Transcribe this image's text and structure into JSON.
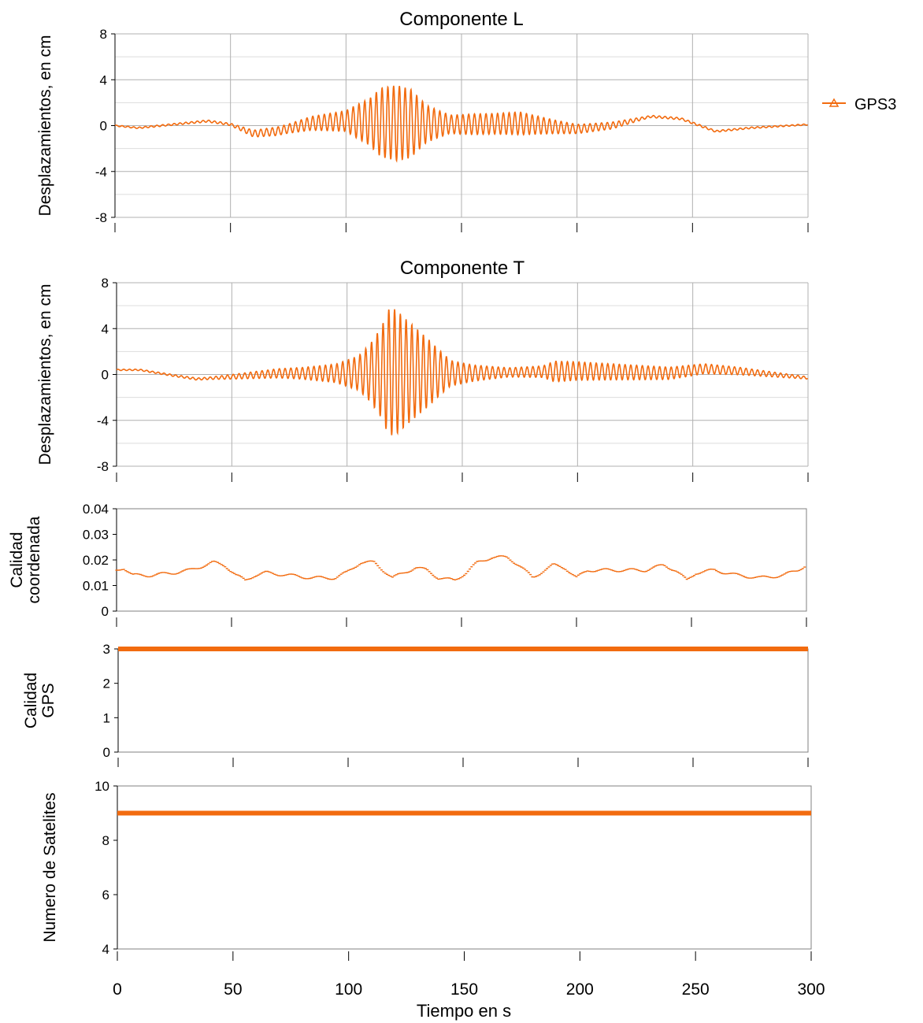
{
  "legend": {
    "label": "GPS3",
    "position": "top-right"
  },
  "colors": {
    "series": "#f26b0f",
    "grid": "#b0b0b0",
    "axis": "#000000",
    "minor_grid": "#dddddd"
  },
  "x_axis": {
    "label": "Tiempo en s",
    "ticks": [
      0,
      50,
      100,
      150,
      200,
      250,
      300
    ],
    "range": [
      0,
      300
    ]
  },
  "chart_data": [
    {
      "type": "line",
      "title": "Componente L",
      "ylabel": "Desplazamientos, en cm",
      "ylim": [
        -8,
        8
      ],
      "yticks": [
        8,
        4,
        0,
        -4,
        -8
      ],
      "grid": true,
      "series": [
        {
          "name": "GPS3",
          "x": [
            0,
            300
          ],
          "baseline": [
            [
              0,
              0
            ],
            [
              10,
              -0.2
            ],
            [
              25,
              0.1
            ],
            [
              40,
              0.4
            ],
            [
              50,
              0.1
            ],
            [
              60,
              -0.7
            ],
            [
              70,
              -0.5
            ],
            [
              85,
              0.2
            ],
            [
              100,
              0.4
            ],
            [
              125,
              0.2
            ],
            [
              150,
              0.1
            ],
            [
              175,
              0.2
            ],
            [
              200,
              -0.3
            ],
            [
              215,
              0.0
            ],
            [
              232,
              0.8
            ],
            [
              245,
              0.6
            ],
            [
              260,
              -0.5
            ],
            [
              275,
              -0.2
            ],
            [
              300,
              0.1
            ]
          ],
          "envelope": [
            [
              0,
              0.05
            ],
            [
              50,
              0.1
            ],
            [
              60,
              0.3
            ],
            [
              75,
              0.4
            ],
            [
              90,
              0.7
            ],
            [
              100,
              0.9
            ],
            [
              105,
              1.5
            ],
            [
              110,
              2.0
            ],
            [
              115,
              3.0
            ],
            [
              122,
              3.3
            ],
            [
              128,
              3.0
            ],
            [
              135,
              1.6
            ],
            [
              145,
              0.8
            ],
            [
              155,
              0.9
            ],
            [
              165,
              0.9
            ],
            [
              175,
              1.0
            ],
            [
              190,
              0.6
            ],
            [
              200,
              0.4
            ],
            [
              215,
              0.3
            ],
            [
              230,
              0.1
            ],
            [
              300,
              0.05
            ]
          ]
        }
      ]
    },
    {
      "type": "line",
      "title": "Componente T",
      "ylabel": "Desplazamientos, en cm",
      "ylim": [
        -8,
        8
      ],
      "yticks": [
        8,
        4,
        0,
        -4,
        -8
      ],
      "grid": true,
      "series": [
        {
          "name": "GPS3",
          "x": [
            0,
            300
          ],
          "baseline": [
            [
              0,
              0.4
            ],
            [
              10,
              0.4
            ],
            [
              25,
              -0.1
            ],
            [
              35,
              -0.4
            ],
            [
              50,
              -0.2
            ],
            [
              70,
              0.1
            ],
            [
              100,
              0.1
            ],
            [
              120,
              0.2
            ],
            [
              150,
              0.1
            ],
            [
              200,
              0.3
            ],
            [
              240,
              0.1
            ],
            [
              255,
              0.5
            ],
            [
              270,
              0.3
            ],
            [
              300,
              -0.3
            ]
          ],
          "envelope": [
            [
              0,
              0.05
            ],
            [
              40,
              0.1
            ],
            [
              60,
              0.3
            ],
            [
              80,
              0.5
            ],
            [
              95,
              0.8
            ],
            [
              105,
              1.5
            ],
            [
              110,
              2.5
            ],
            [
              115,
              4.0
            ],
            [
              118,
              5.5
            ],
            [
              121,
              5.5
            ],
            [
              128,
              4.2
            ],
            [
              135,
              3.0
            ],
            [
              140,
              2.0
            ],
            [
              145,
              1.1
            ],
            [
              155,
              0.7
            ],
            [
              170,
              0.4
            ],
            [
              185,
              0.5
            ],
            [
              190,
              0.9
            ],
            [
              200,
              0.8
            ],
            [
              230,
              0.6
            ],
            [
              260,
              0.4
            ],
            [
              300,
              0.1
            ]
          ]
        }
      ]
    },
    {
      "type": "scatter",
      "ylabel": "Calidad coordenada",
      "ylim": [
        0,
        0.04
      ],
      "yticks": [
        0.04,
        0.03,
        0.02,
        0.01,
        0
      ],
      "grid": false,
      "series": [
        {
          "name": "GPS3",
          "points": [
            [
              0,
              0.016
            ],
            [
              3,
              0.017
            ],
            [
              7,
              0.014
            ],
            [
              15,
              0.014
            ],
            [
              25,
              0.015
            ],
            [
              32,
              0.016
            ],
            [
              42,
              0.019
            ],
            [
              47,
              0.018
            ],
            [
              52,
              0.014
            ],
            [
              56,
              0.012
            ],
            [
              60,
              0.014
            ],
            [
              65,
              0.015
            ],
            [
              75,
              0.014
            ],
            [
              85,
              0.013
            ],
            [
              95,
              0.013
            ],
            [
              100,
              0.015
            ],
            [
              106,
              0.019
            ],
            [
              112,
              0.019
            ],
            [
              116,
              0.016
            ],
            [
              120,
              0.013
            ],
            [
              125,
              0.015
            ],
            [
              130,
              0.017
            ],
            [
              135,
              0.016
            ],
            [
              140,
              0.013
            ],
            [
              147,
              0.012
            ],
            [
              152,
              0.015
            ],
            [
              157,
              0.019
            ],
            [
              163,
              0.021
            ],
            [
              170,
              0.021
            ],
            [
              175,
              0.018
            ],
            [
              181,
              0.013
            ],
            [
              186,
              0.016
            ],
            [
              190,
              0.018
            ],
            [
              195,
              0.017
            ],
            [
              200,
              0.013
            ],
            [
              205,
              0.016
            ],
            [
              220,
              0.016
            ],
            [
              230,
              0.016
            ],
            [
              238,
              0.018
            ],
            [
              243,
              0.016
            ],
            [
              248,
              0.012
            ],
            [
              252,
              0.015
            ],
            [
              260,
              0.016
            ],
            [
              270,
              0.014
            ],
            [
              280,
              0.013
            ],
            [
              290,
              0.014
            ],
            [
              296,
              0.016
            ],
            [
              300,
              0.018
            ]
          ]
        }
      ]
    },
    {
      "type": "line",
      "ylabel": "Calidad GPS",
      "ylim": [
        0,
        3
      ],
      "yticks": [
        3,
        2,
        1,
        0
      ],
      "grid": false,
      "series": [
        {
          "name": "GPS3",
          "x": [
            0,
            300
          ],
          "y": [
            3,
            3
          ]
        }
      ]
    },
    {
      "type": "line",
      "ylabel": "Numero de Satelites",
      "xlabel": "Tiempo en s",
      "ylim": [
        4,
        10
      ],
      "yticks": [
        10,
        8,
        6,
        4
      ],
      "grid": false,
      "series": [
        {
          "name": "GPS3",
          "x": [
            0,
            300
          ],
          "y": [
            9,
            9
          ]
        }
      ]
    }
  ]
}
